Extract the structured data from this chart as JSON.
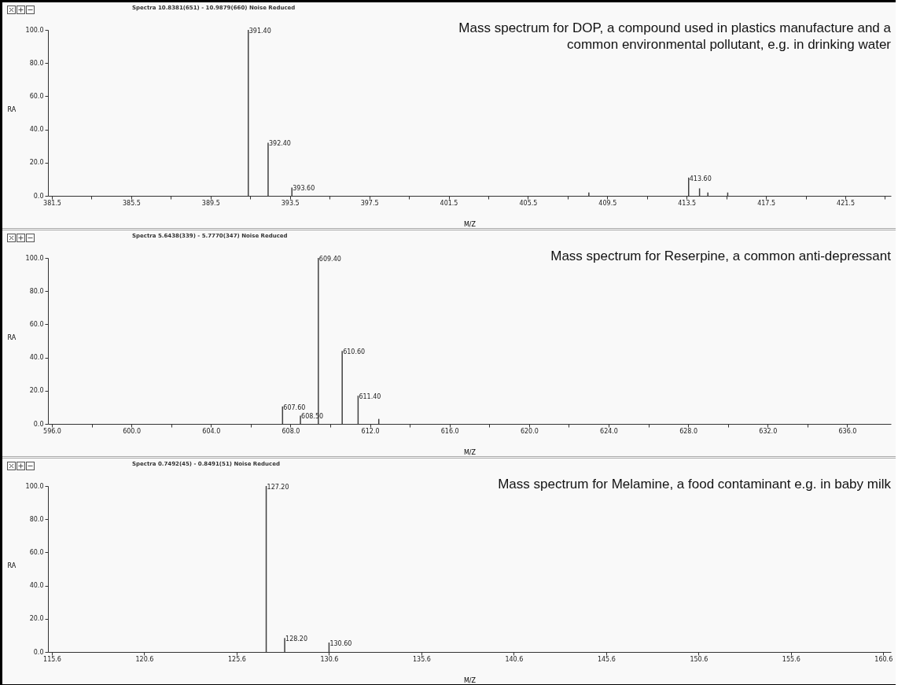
{
  "chart_data": [
    {
      "type": "bar",
      "title": "Spectra 10.8381(651) - 10.9879(660) Noise Reduced",
      "subtitle": "Mass spectrum for DOP, a compound used in plastics manufacture and a common environmental pollutant, e.g. in drinking water",
      "xlabel": "M/Z",
      "ylabel": "RA",
      "color": "#404040",
      "x": [
        391.4,
        392.4,
        393.6,
        408.57,
        413.6,
        414.15,
        414.57,
        415.57
      ],
      "values": [
        100,
        32,
        5,
        2,
        11,
        4.5,
        2,
        2
      ],
      "xlim": [
        381.5,
        423.6
      ],
      "xticks": [
        381.5,
        {
          "value": 383.5,
          "label": null
        },
        385.5,
        {
          "value": 387.5,
          "label": null
        },
        389.5,
        {
          "value": 391.5,
          "label": null
        },
        393.5,
        {
          "value": 395.5,
          "label": null
        },
        397.5,
        {
          "value": 399.5,
          "label": null
        },
        401.5,
        {
          "value": 403.5,
          "label": null
        },
        405.5,
        {
          "value": 407.5,
          "label": null
        },
        409.5,
        {
          "value": 411.5,
          "label": null
        },
        413.5,
        {
          "value": 415.5,
          "label": null
        },
        417.5,
        {
          "value": 419.5,
          "label": null
        },
        421.5,
        {
          "value": 423.5,
          "label": null
        }
      ],
      "ylim": [
        0,
        100
      ],
      "yticks": [
        {
          "value": 0,
          "label": "0.0"
        },
        {
          "value": 20,
          "label": "20.0"
        },
        {
          "value": 40,
          "label": "40.0"
        },
        {
          "value": 60,
          "label": "60.0"
        },
        {
          "value": 80,
          "label": "80.0"
        },
        {
          "value": 100,
          "label": "100.0"
        }
      ],
      "annotations": [
        {
          "text": "391.40",
          "x": 391.4,
          "y": 100
        },
        {
          "text": "392.40",
          "x": 392.4,
          "y": 32
        },
        {
          "text": "393.60",
          "x": 393.6,
          "y": 5
        },
        {
          "text": "413.60",
          "x": 413.6,
          "y": 11
        }
      ]
    },
    {
      "type": "bar",
      "title": "Spectra 5.6438(339) - 5.7770(347) Noise Reduced",
      "subtitle": "Mass spectrum for Reserpine, a common anti-depressant",
      "xlabel": "M/Z",
      "ylabel": "RA",
      "color": "#404040",
      "x": [
        607.6,
        608.5,
        609.4,
        610.6,
        611.4,
        612.44
      ],
      "values": [
        10.5,
        5,
        100,
        44,
        17,
        3
      ],
      "xlim": [
        596,
        638
      ],
      "xticks": [
        {
          "value": 596,
          "label": "596.0"
        },
        {
          "value": 598,
          "label": null
        },
        {
          "value": 600,
          "label": "600.0"
        },
        {
          "value": 602,
          "label": null
        },
        {
          "value": 604,
          "label": "604.0"
        },
        {
          "value": 606,
          "label": null
        },
        {
          "value": 608,
          "label": "608.0"
        },
        {
          "value": 610,
          "label": null
        },
        {
          "value": 612,
          "label": "612.0"
        },
        {
          "value": 614,
          "label": null
        },
        {
          "value": 616,
          "label": "616.0"
        },
        {
          "value": 618,
          "label": null
        },
        {
          "value": 620,
          "label": "620.0"
        },
        {
          "value": 622,
          "label": null
        },
        {
          "value": 624,
          "label": "624.0"
        },
        {
          "value": 626,
          "label": null
        },
        {
          "value": 628,
          "label": "628.0"
        },
        {
          "value": 630,
          "label": null
        },
        {
          "value": 632,
          "label": "632.0"
        },
        {
          "value": 634,
          "label": null
        },
        {
          "value": 636,
          "label": "636.0"
        }
      ],
      "ylim": [
        0,
        100
      ],
      "yticks": [
        {
          "value": 0,
          "label": "0.0"
        },
        {
          "value": 20,
          "label": "20.0"
        },
        {
          "value": 40,
          "label": "40.0"
        },
        {
          "value": 60,
          "label": "60.0"
        },
        {
          "value": 80,
          "label": "80.0"
        },
        {
          "value": 100,
          "label": "100.0"
        }
      ],
      "annotations": [
        {
          "text": "607.60",
          "x": 607.6,
          "y": 10.5
        },
        {
          "text": "608.50",
          "x": 608.5,
          "y": 5
        },
        {
          "text": "609.40",
          "x": 609.4,
          "y": 100
        },
        {
          "text": "610.60",
          "x": 610.6,
          "y": 44
        },
        {
          "text": "611.40",
          "x": 611.4,
          "y": 17
        }
      ]
    },
    {
      "type": "bar",
      "title": "Spectra 0.7492(45) - 0.8491(51) Noise Reduced",
      "subtitle": "Mass spectrum for Melamine, a food contaminant e.g. in baby milk",
      "xlabel": "M/Z",
      "ylabel": "RA",
      "color": "#404040",
      "x": [
        127.2,
        128.2,
        130.6
      ],
      "values": [
        100,
        8.4,
        5.7
      ],
      "xlim": [
        115.6,
        160.8
      ],
      "xticks": [
        115.6,
        120.6,
        125.6,
        130.6,
        135.6,
        140.6,
        145.6,
        150.6,
        155.6,
        160.6
      ],
      "ylim": [
        0,
        100
      ],
      "yticks": [
        {
          "value": 0,
          "label": "0.0"
        },
        {
          "value": 20,
          "label": "20.0"
        },
        {
          "value": 40,
          "label": "40.0"
        },
        {
          "value": 60,
          "label": "60.0"
        },
        {
          "value": 80,
          "label": "80.0"
        },
        {
          "value": 100,
          "label": "100.0"
        }
      ],
      "annotations": [
        {
          "text": "127.20",
          "x": 127.2,
          "y": 100
        },
        {
          "text": "128.20",
          "x": 128.2,
          "y": 8.4
        },
        {
          "text": "130.60",
          "x": 130.6,
          "y": 5.7
        }
      ]
    }
  ]
}
